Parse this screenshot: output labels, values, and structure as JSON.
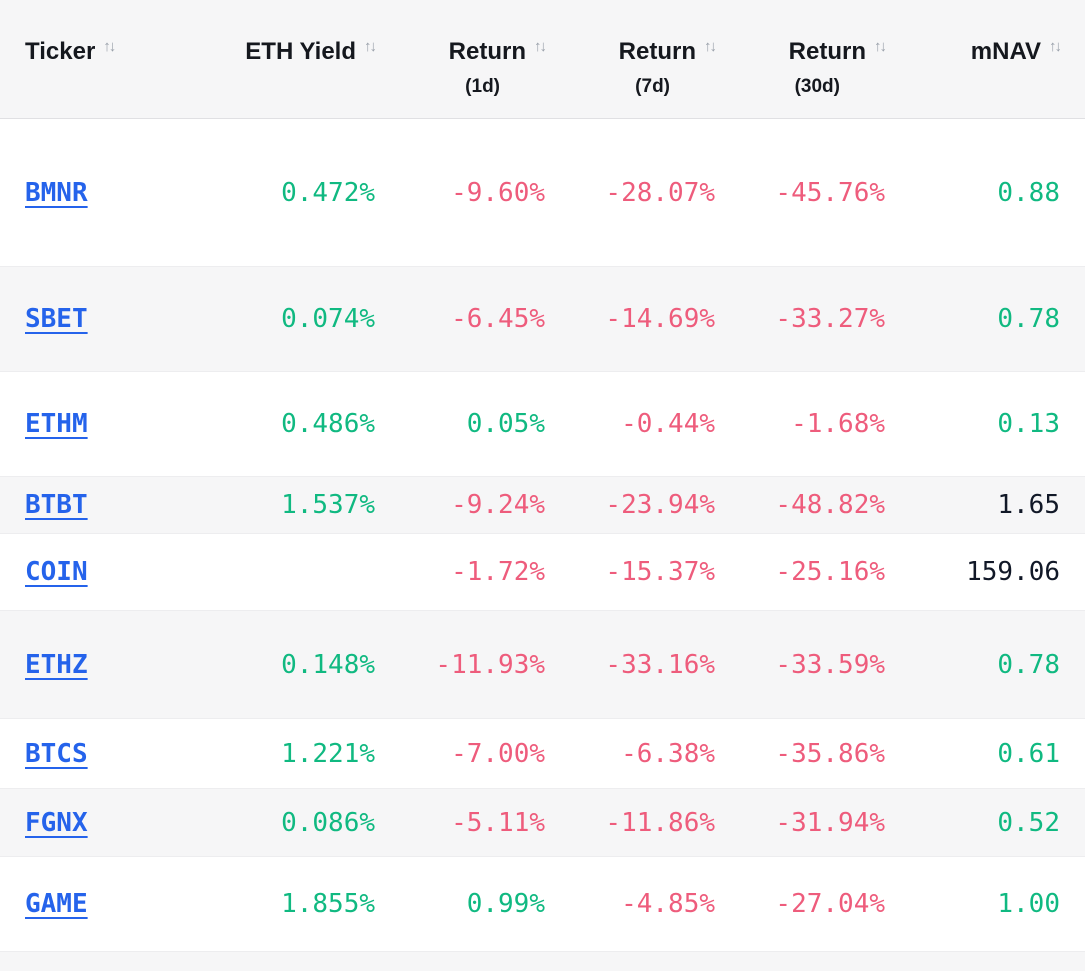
{
  "colors": {
    "positive_green": "#10b981",
    "negative_red": "#ee5c7c",
    "link_blue": "#2563eb",
    "neutral_dark": "#111827",
    "stripe_gray": "#f6f6f7"
  },
  "table": {
    "sort_icon": "↑↓",
    "columns": [
      {
        "label": "Ticker",
        "sub": ""
      },
      {
        "label": "ETH Yield",
        "sub": ""
      },
      {
        "label": "Return",
        "sub": "(1d)"
      },
      {
        "label": "Return",
        "sub": "(7d)"
      },
      {
        "label": "Return",
        "sub": "(30d)"
      },
      {
        "label": "mNAV",
        "sub": ""
      }
    ],
    "rows": [
      {
        "ticker": "BMNR",
        "cells": [
          {
            "text": "0.472%",
            "color": "green"
          },
          {
            "text": "-9.60%",
            "color": "red"
          },
          {
            "text": "-28.07%",
            "color": "red"
          },
          {
            "text": "-45.76%",
            "color": "red"
          },
          {
            "text": "0.88",
            "color": "green"
          }
        ]
      },
      {
        "ticker": "SBET",
        "cells": [
          {
            "text": "0.074%",
            "color": "green"
          },
          {
            "text": "-6.45%",
            "color": "red"
          },
          {
            "text": "-14.69%",
            "color": "red"
          },
          {
            "text": "-33.27%",
            "color": "red"
          },
          {
            "text": "0.78",
            "color": "green"
          }
        ]
      },
      {
        "ticker": "ETHM",
        "cells": [
          {
            "text": "0.486%",
            "color": "green"
          },
          {
            "text": "0.05%",
            "color": "green"
          },
          {
            "text": "-0.44%",
            "color": "red"
          },
          {
            "text": "-1.68%",
            "color": "red"
          },
          {
            "text": "0.13",
            "color": "green"
          }
        ]
      },
      {
        "ticker": "BTBT",
        "cells": [
          {
            "text": "1.537%",
            "color": "green"
          },
          {
            "text": "-9.24%",
            "color": "red"
          },
          {
            "text": "-23.94%",
            "color": "red"
          },
          {
            "text": "-48.82%",
            "color": "red"
          },
          {
            "text": "1.65",
            "color": "dark"
          }
        ]
      },
      {
        "ticker": "COIN",
        "cells": [
          {
            "text": "",
            "color": "none"
          },
          {
            "text": "-1.72%",
            "color": "red"
          },
          {
            "text": "-15.37%",
            "color": "red"
          },
          {
            "text": "-25.16%",
            "color": "red"
          },
          {
            "text": "159.06",
            "color": "dark"
          }
        ]
      },
      {
        "ticker": "ETHZ",
        "cells": [
          {
            "text": "0.148%",
            "color": "green"
          },
          {
            "text": "-11.93%",
            "color": "red"
          },
          {
            "text": "-33.16%",
            "color": "red"
          },
          {
            "text": "-33.59%",
            "color": "red"
          },
          {
            "text": "0.78",
            "color": "green"
          }
        ]
      },
      {
        "ticker": "BTCS",
        "cells": [
          {
            "text": "1.221%",
            "color": "green"
          },
          {
            "text": "-7.00%",
            "color": "red"
          },
          {
            "text": "-6.38%",
            "color": "red"
          },
          {
            "text": "-35.86%",
            "color": "red"
          },
          {
            "text": "0.61",
            "color": "green"
          }
        ]
      },
      {
        "ticker": "FGNX",
        "cells": [
          {
            "text": "0.086%",
            "color": "green"
          },
          {
            "text": "-5.11%",
            "color": "red"
          },
          {
            "text": "-11.86%",
            "color": "red"
          },
          {
            "text": "-31.94%",
            "color": "red"
          },
          {
            "text": "0.52",
            "color": "green"
          }
        ]
      },
      {
        "ticker": "GAME",
        "cells": [
          {
            "text": "1.855%",
            "color": "green"
          },
          {
            "text": "0.99%",
            "color": "green"
          },
          {
            "text": "-4.85%",
            "color": "red"
          },
          {
            "text": "-27.04%",
            "color": "red"
          },
          {
            "text": "1.00",
            "color": "green"
          }
        ]
      }
    ]
  }
}
